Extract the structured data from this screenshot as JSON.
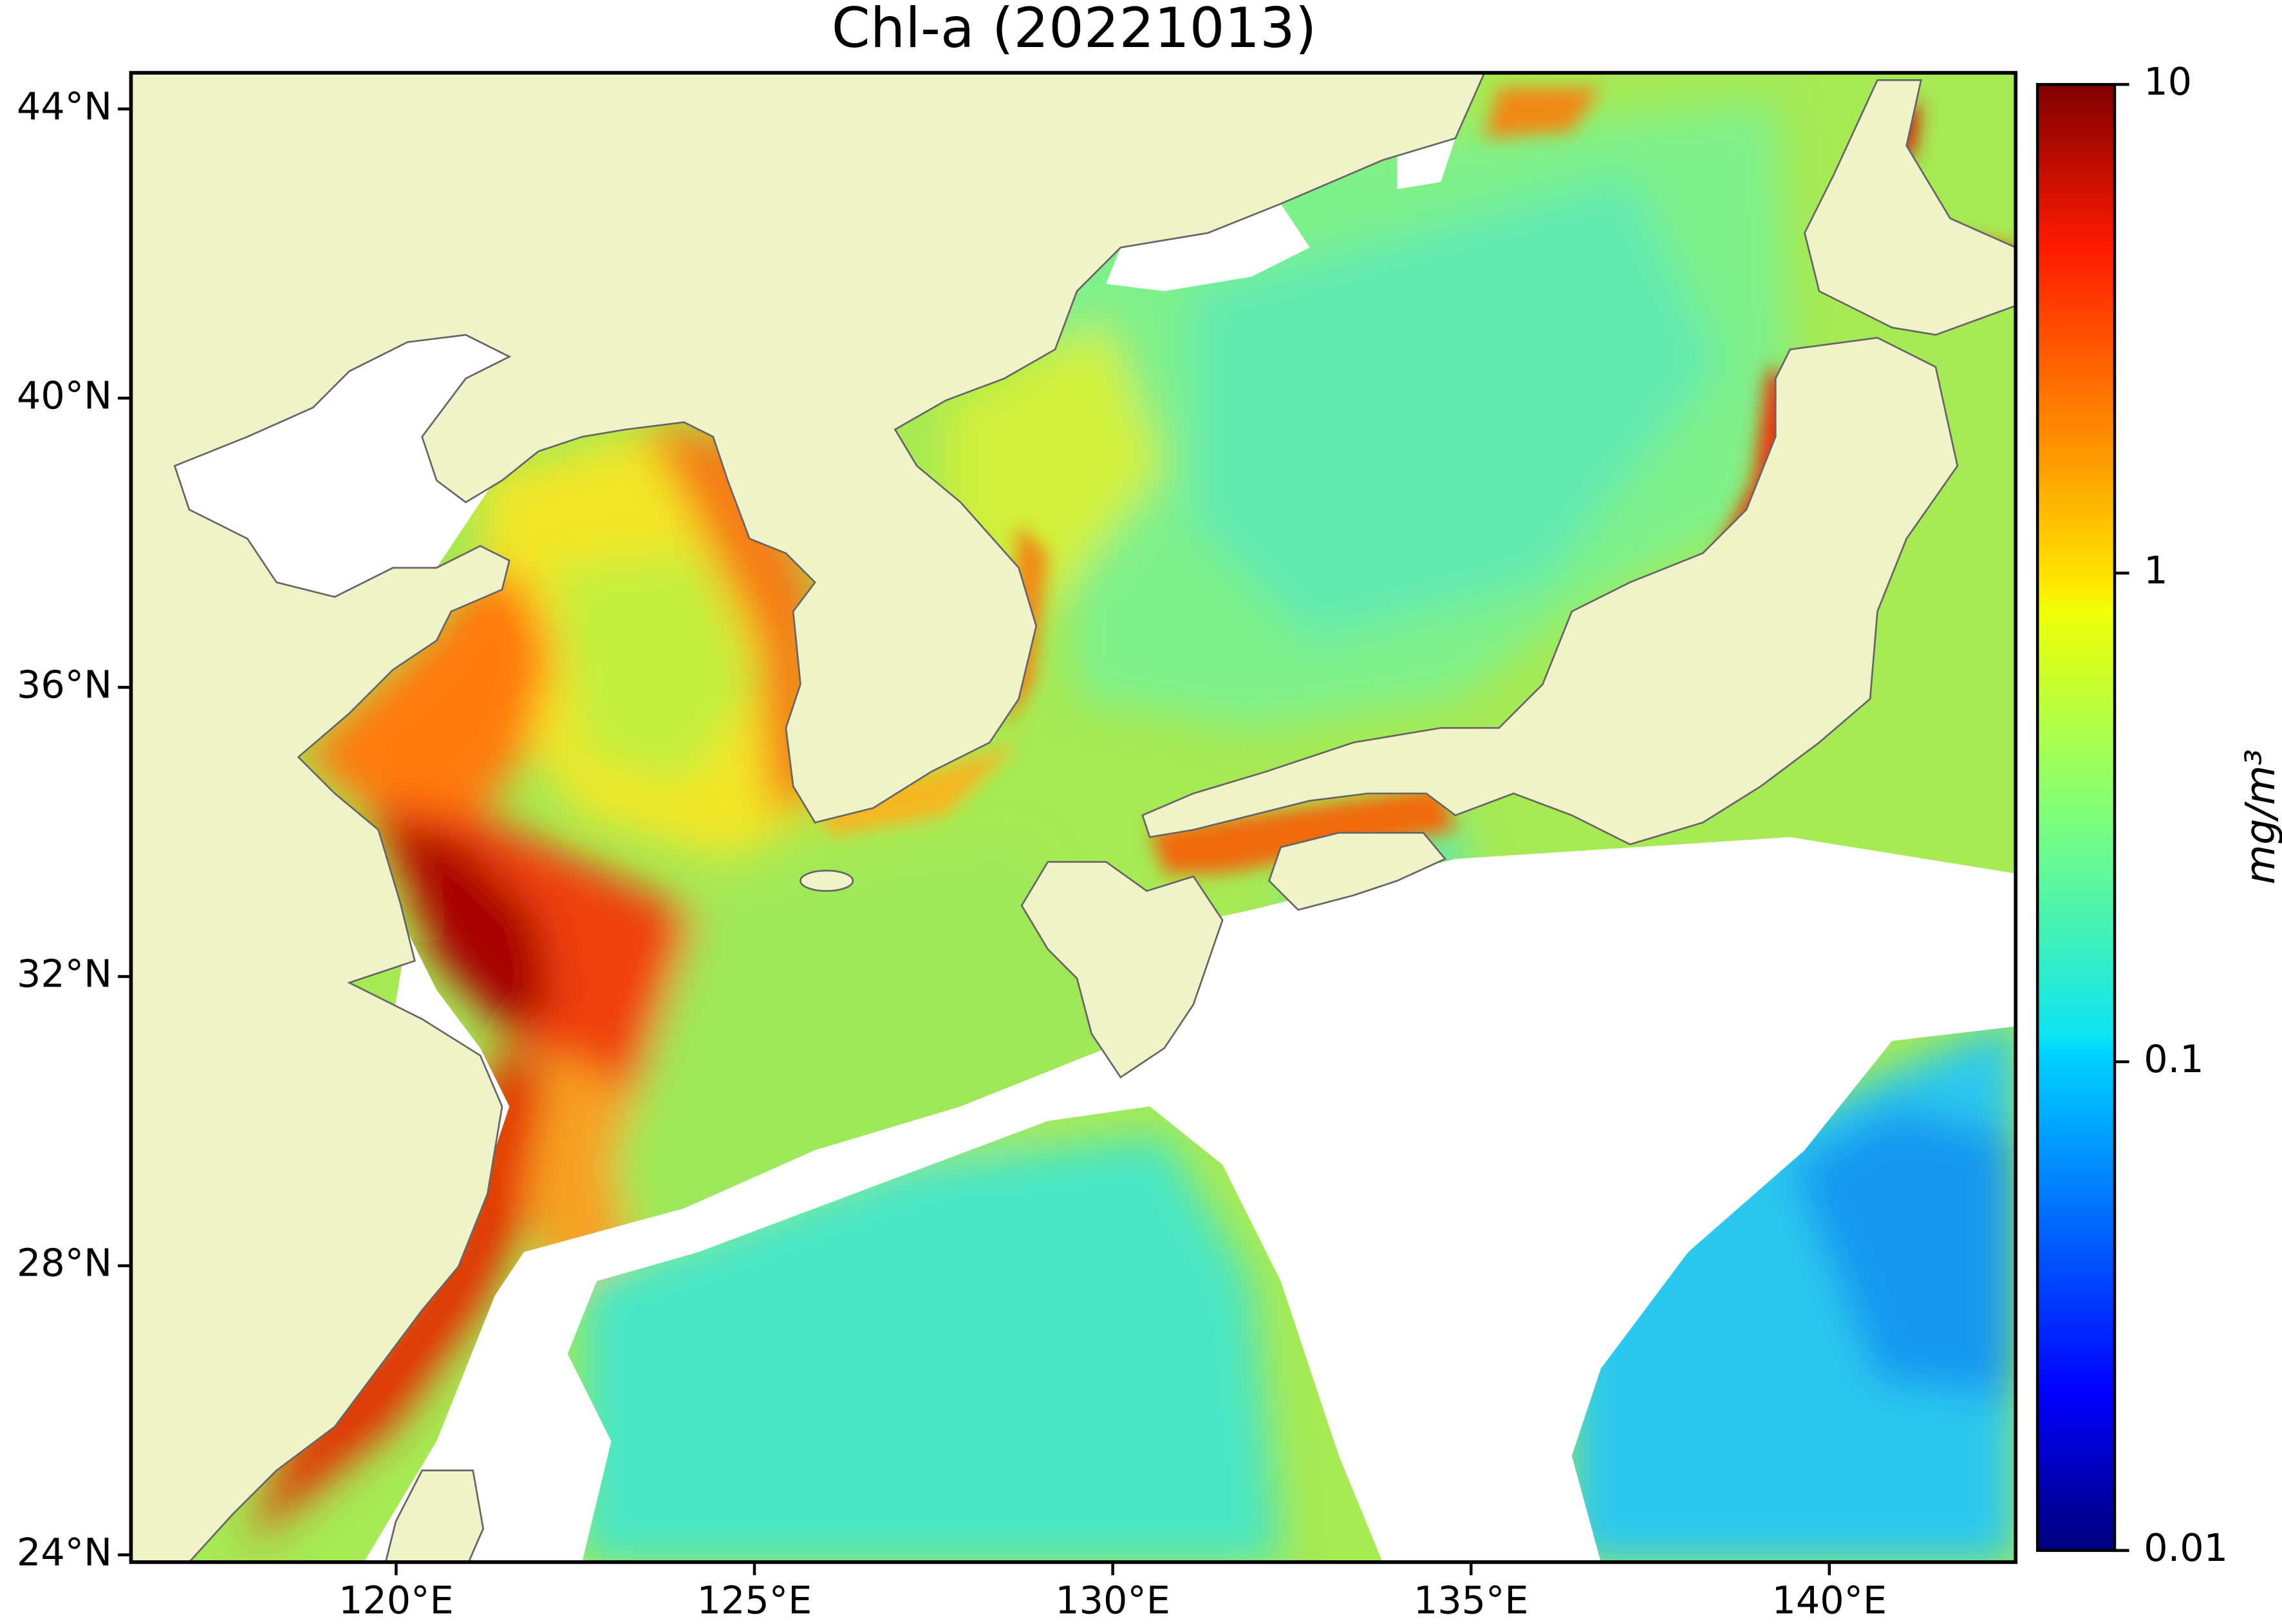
{
  "chart_data": {
    "type": "map",
    "title": "Chl-a (20221013)",
    "xlim": [
      116.3,
      142.6
    ],
    "ylim": [
      23.9,
      44.5
    ],
    "xticks": [
      {
        "value": 120,
        "label": "120°E"
      },
      {
        "value": 125,
        "label": "125°E"
      },
      {
        "value": 130,
        "label": "130°E"
      },
      {
        "value": 135,
        "label": "135°E"
      },
      {
        "value": 140,
        "label": "140°E"
      }
    ],
    "yticks": [
      {
        "value": 24,
        "label": "24°N"
      },
      {
        "value": 28,
        "label": "28°N"
      },
      {
        "value": 32,
        "label": "32°N"
      },
      {
        "value": 36,
        "label": "36°N"
      },
      {
        "value": 40,
        "label": "40°N"
      },
      {
        "value": 44,
        "label": "44°N"
      }
    ],
    "colorbar": {
      "label": "mg/m³",
      "lim": [
        0.01,
        10
      ],
      "ticks": [
        0.01,
        0.1,
        1,
        10
      ],
      "scale": "log",
      "colormap": "jet"
    }
  }
}
